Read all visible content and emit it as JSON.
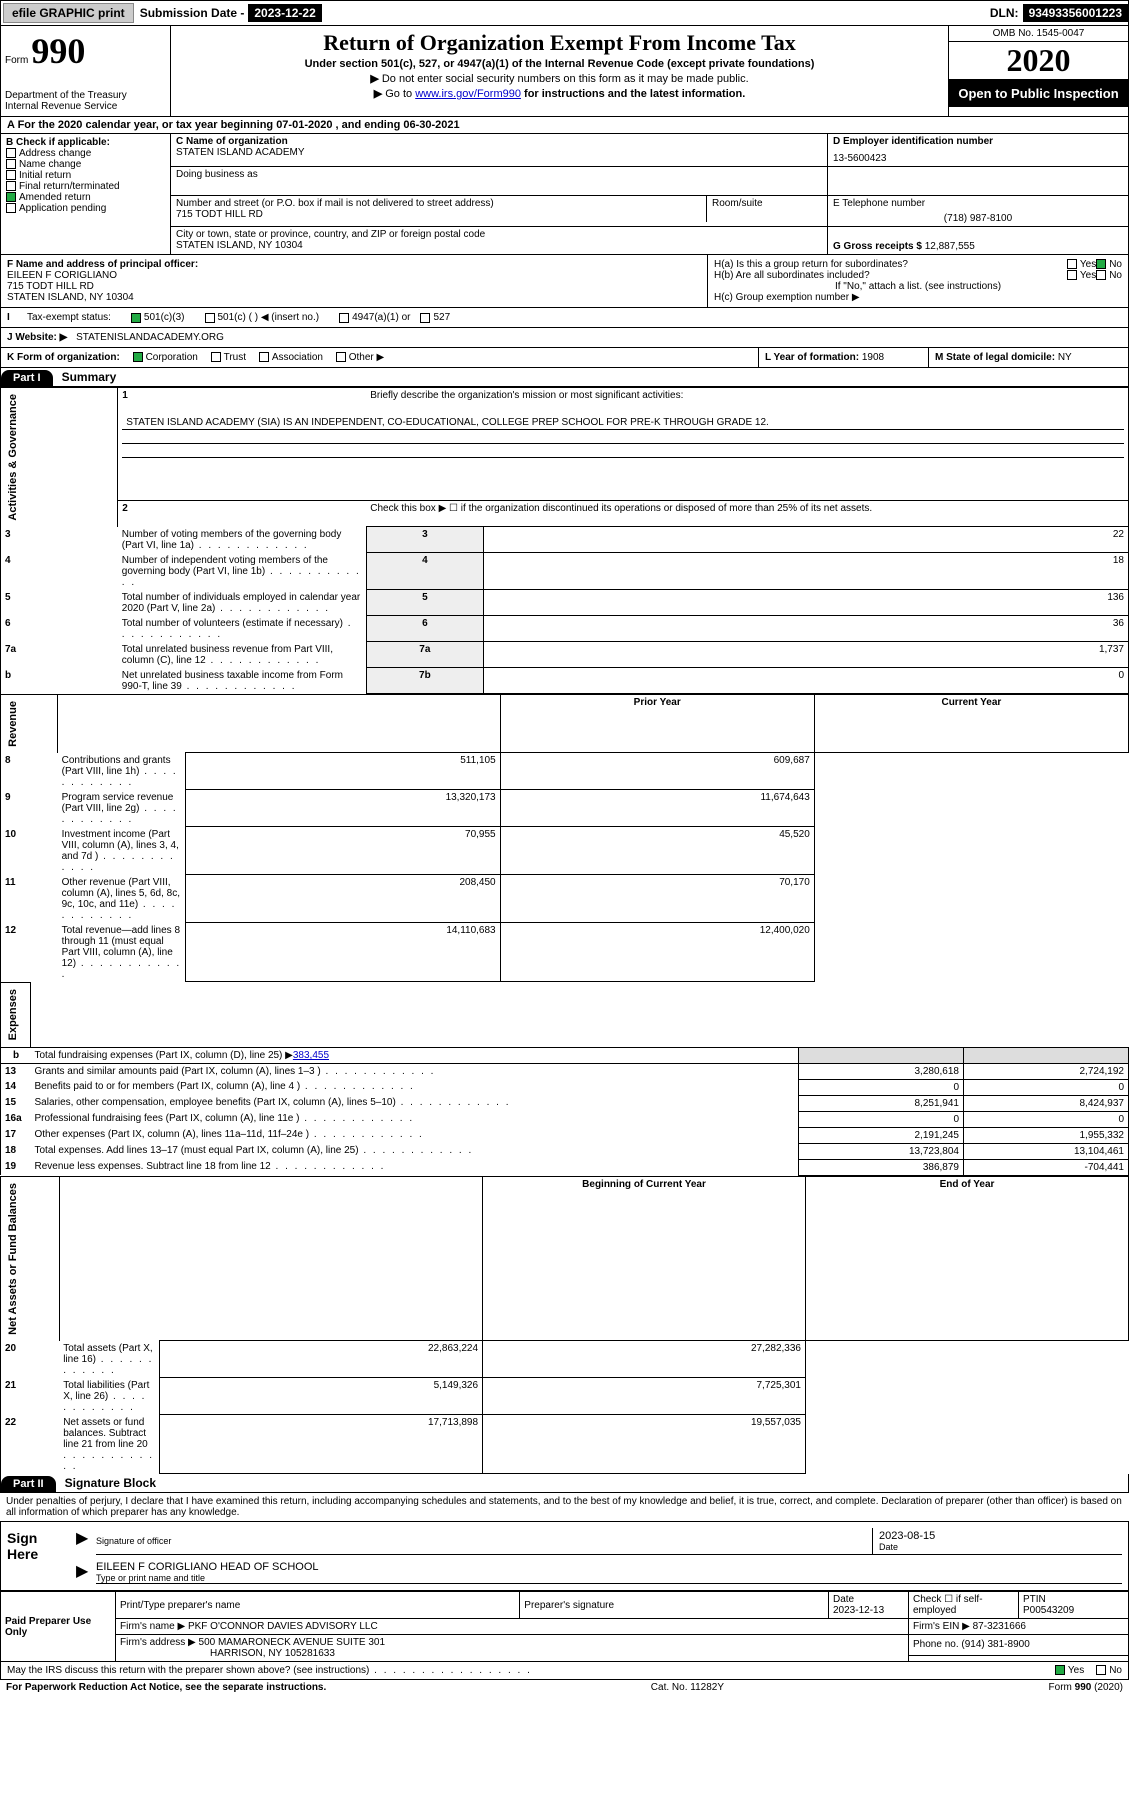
{
  "topbar": {
    "efile_label": "efile GRAPHIC print",
    "sub_label": "Submission Date - ",
    "sub_date": "2023-12-22",
    "dln_label": "DLN: ",
    "dln": "93493356001223"
  },
  "header": {
    "form_prefix": "Form",
    "form_number": "990",
    "dept": "Department of the Treasury\nInternal Revenue Service",
    "title": "Return of Organization Exempt From Income Tax",
    "subtitle": "Under section 501(c), 527, or 4947(a)(1) of the Internal Revenue Code (except private foundations)",
    "line1": "Do not enter social security numbers on this form as it may be made public.",
    "line2_pre": "Go to ",
    "line2_link": "www.irs.gov/Form990",
    "line2_post": " for instructions and the latest information.",
    "omb": "OMB No. 1545-0047",
    "year": "2020",
    "open_public": "Open to Public Inspection"
  },
  "row_a": "A For the 2020 calendar year, or tax year beginning 07-01-2020    , and ending 06-30-2021",
  "col_b": {
    "hdr": "B Check if applicable:",
    "items": [
      "Address change",
      "Name change",
      "Initial return",
      "Final return/terminated",
      "Amended return",
      "Application pending"
    ],
    "checked_idx": 4
  },
  "col_c": {
    "name_label": "C Name of organization",
    "name": "STATEN ISLAND ACADEMY",
    "dba_label": "Doing business as",
    "addr_label": "Number and street (or P.O. box if mail is not delivered to street address)",
    "room_label": "Room/suite",
    "addr": "715 TODT HILL RD",
    "city_label": "City or town, state or province, country, and ZIP or foreign postal code",
    "city": "STATEN ISLAND, NY  10304"
  },
  "col_d": {
    "ein_label": "D Employer identification number",
    "ein": "13-5600423",
    "phone_label": "E Telephone number",
    "phone": "(718) 987-8100",
    "gross_label": "G Gross receipts $ ",
    "gross": "12,887,555"
  },
  "f": {
    "label": "F Name and address of principal officer:",
    "name": "EILEEN F CORIGLIANO",
    "addr1": "715 TODT HILL RD",
    "addr2": "STATEN ISLAND, NY  10304"
  },
  "h": {
    "ha_label": "H(a)  Is this a group return for subordinates?",
    "hb_label": "H(b)  Are all subordinates included?",
    "hb_note": "If \"No,\" attach a list. (see instructions)",
    "hc_label": "H(c)  Group exemption number ▶",
    "yes": "Yes",
    "no": "No"
  },
  "i": {
    "label": "Tax-exempt status:",
    "opts": [
      "501(c)(3)",
      "501(c) (  ) ◀ (insert no.)",
      "4947(a)(1) or",
      "527"
    ]
  },
  "j": {
    "label": "J   Website: ▶",
    "val": "STATENISLANDACADEMY.ORG"
  },
  "k": {
    "label": "K Form of organization:",
    "opts": [
      "Corporation",
      "Trust",
      "Association",
      "Other ▶"
    ],
    "l_label": "L Year of formation: ",
    "l_val": "1908",
    "m_label": "M State of legal domicile: ",
    "m_val": "NY"
  },
  "part1": {
    "label": "Part I",
    "title": "Summary"
  },
  "summary": {
    "side1": "Activities & Governance",
    "side2": "Revenue",
    "side3": "Expenses",
    "side4": "Net Assets or Fund Balances",
    "q1": "Briefly describe the organization's mission or most significant activities:",
    "mission": "STATEN ISLAND ACADEMY (SIA) IS AN INDEPENDENT, CO-EDUCATIONAL, COLLEGE PREP SCHOOL FOR PRE-K THROUGH GRADE 12.",
    "q2": "Check this box ▶ ☐  if the organization discontinued its operations or disposed of more than 25% of its net assets.",
    "rows_top": [
      {
        "n": "3",
        "t": "Number of voting members of the governing body (Part VI, line 1a)",
        "box": "3",
        "v": "22"
      },
      {
        "n": "4",
        "t": "Number of independent voting members of the governing body (Part VI, line 1b)",
        "box": "4",
        "v": "18"
      },
      {
        "n": "5",
        "t": "Total number of individuals employed in calendar year 2020 (Part V, line 2a)",
        "box": "5",
        "v": "136"
      },
      {
        "n": "6",
        "t": "Total number of volunteers (estimate if necessary)",
        "box": "6",
        "v": "36"
      },
      {
        "n": "7a",
        "t": "Total unrelated business revenue from Part VIII, column (C), line 12",
        "box": "7a",
        "v": "1,737"
      },
      {
        "n": "b",
        "t": "Net unrelated business taxable income from Form 990-T, line 39",
        "box": "7b",
        "v": "0"
      }
    ],
    "hdr_prior": "Prior Year",
    "hdr_current": "Current Year",
    "rev_rows": [
      {
        "n": "8",
        "t": "Contributions and grants (Part VIII, line 1h)",
        "p": "511,105",
        "c": "609,687"
      },
      {
        "n": "9",
        "t": "Program service revenue (Part VIII, line 2g)",
        "p": "13,320,173",
        "c": "11,674,643"
      },
      {
        "n": "10",
        "t": "Investment income (Part VIII, column (A), lines 3, 4, and 7d )",
        "p": "70,955",
        "c": "45,520"
      },
      {
        "n": "11",
        "t": "Other revenue (Part VIII, column (A), lines 5, 6d, 8c, 9c, 10c, and 11e)",
        "p": "208,450",
        "c": "70,170"
      },
      {
        "n": "12",
        "t": "Total revenue—add lines 8 through 11 (must equal Part VIII, column (A), line 12)",
        "p": "14,110,683",
        "c": "12,400,020"
      }
    ],
    "exp_rows": [
      {
        "n": "13",
        "t": "Grants and similar amounts paid (Part IX, column (A), lines 1–3 )",
        "p": "3,280,618",
        "c": "2,724,192"
      },
      {
        "n": "14",
        "t": "Benefits paid to or for members (Part IX, column (A), line 4 )",
        "p": "0",
        "c": "0"
      },
      {
        "n": "15",
        "t": "Salaries, other compensation, employee benefits (Part IX, column (A), lines 5–10)",
        "p": "8,251,941",
        "c": "8,424,937"
      },
      {
        "n": "16a",
        "t": "Professional fundraising fees (Part IX, column (A), line 11e )",
        "p": "0",
        "c": "0"
      }
    ],
    "line_b": "Total fundraising expenses (Part IX, column (D), line 25) ▶",
    "line_b_val": "383,455",
    "exp_rows2": [
      {
        "n": "17",
        "t": "Other expenses (Part IX, column (A), lines 11a–11d, 11f–24e )",
        "p": "2,191,245",
        "c": "1,955,332"
      },
      {
        "n": "18",
        "t": "Total expenses. Add lines 13–17 (must equal Part IX, column (A), line 25)",
        "p": "13,723,804",
        "c": "13,104,461"
      },
      {
        "n": "19",
        "t": "Revenue less expenses. Subtract line 18 from line 12",
        "p": "386,879",
        "c": "-704,441"
      }
    ],
    "hdr_begin": "Beginning of Current Year",
    "hdr_end": "End of Year",
    "net_rows": [
      {
        "n": "20",
        "t": "Total assets (Part X, line 16)",
        "p": "22,863,224",
        "c": "27,282,336"
      },
      {
        "n": "21",
        "t": "Total liabilities (Part X, line 26)",
        "p": "5,149,326",
        "c": "7,725,301"
      },
      {
        "n": "22",
        "t": "Net assets or fund balances. Subtract line 21 from line 20",
        "p": "17,713,898",
        "c": "19,557,035"
      }
    ]
  },
  "part2": {
    "label": "Part II",
    "title": "Signature Block"
  },
  "sig": {
    "declaration": "Under penalties of perjury, I declare that I have examined this return, including accompanying schedules and statements, and to the best of my knowledge and belief, it is true, correct, and complete. Declaration of preparer (other than officer) is based on all information of which preparer has any knowledge.",
    "sign_here": "Sign Here",
    "sig_officer": "Signature of officer",
    "date_label": "Date",
    "date": "2023-08-15",
    "name": "EILEEN F CORIGLIANO  HEAD OF SCHOOL",
    "name_label": "Type or print name and title"
  },
  "prep": {
    "left": "Paid Preparer Use Only",
    "h1": "Print/Type preparer's name",
    "h2": "Preparer's signature",
    "h3": "Date",
    "h3v": "2023-12-13",
    "h4": "Check ☐ if self-employed",
    "h5": "PTIN",
    "h5v": "P00543209",
    "firm_label": "Firm's name      ▶ ",
    "firm": "PKF O'CONNOR DAVIES ADVISORY LLC",
    "ein_label": "Firm's EIN ▶ ",
    "ein": "87-3231666",
    "addr_label": "Firm's address  ▶ ",
    "addr1": "500 MAMARONECK AVENUE SUITE 301",
    "addr2": "HARRISON, NY  105281633",
    "phone_label": "Phone no. ",
    "phone": "(914) 381-8900"
  },
  "discuss": {
    "q": "May the IRS discuss this return with the preparer shown above? (see instructions)",
    "yes": "Yes",
    "no": "No"
  },
  "footer": {
    "left": "For Paperwork Reduction Act Notice, see the separate instructions.",
    "mid": "Cat. No. 11282Y",
    "right": "Form 990 (2020)"
  }
}
